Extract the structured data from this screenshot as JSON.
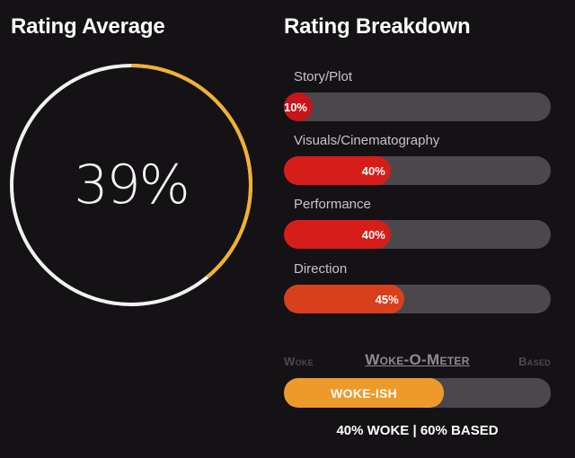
{
  "rating_average": {
    "title": "Rating Average",
    "value_label": "39%",
    "value_percent": 39,
    "ring_color": "#f3b02f",
    "track_color": "#f2f2f2"
  },
  "rating_breakdown": {
    "title": "Rating Breakdown",
    "items": [
      {
        "label": "Story/Plot",
        "percent_label": "10%",
        "percent": 10,
        "color": "#c8141a"
      },
      {
        "label": "Visuals/Cinematography",
        "percent_label": "40%",
        "percent": 40,
        "color": "#d61d1a"
      },
      {
        "label": "Performance",
        "percent_label": "40%",
        "percent": 40,
        "color": "#d61d1a"
      },
      {
        "label": "Direction",
        "percent_label": "45%",
        "percent": 45,
        "color": "#d8401d"
      }
    ]
  },
  "woke_o_meter": {
    "title": "Woke-O-Meter",
    "left_label": "Woke",
    "right_label": "Based",
    "fill_label": "WOKE-ISH",
    "fill_percent": 60,
    "fill_color": "#ee9a2b",
    "summary": "40% WOKE | 60% BASED"
  }
}
